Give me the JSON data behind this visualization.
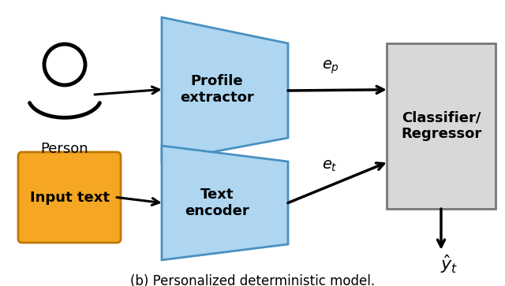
{
  "title": "(b) Personalized deterministic model.",
  "title_fontsize": 12,
  "background_color": "#ffffff",
  "person_label": "Person",
  "input_text_label": "Input text",
  "profile_extractor_label": "Profile\nextractor",
  "text_encoder_label": "Text\nencoder",
  "classifier_label": "Classifier/\nRegressor",
  "ep_label": "$e_p$",
  "et_label": "$e_t$",
  "yhat_label": "$\\hat{y}_t$",
  "trapezoid_color": "#aed6f1",
  "trapezoid_edge_color": "#4a90c0",
  "orange_box_color": "#f5a623",
  "orange_box_edge_color": "#c07800",
  "classifier_box_color": "#d8d8d8",
  "classifier_box_edge_color": "#777777",
  "arrow_color": "#111111",
  "label_fontsize": 13,
  "annotation_fontsize": 14
}
